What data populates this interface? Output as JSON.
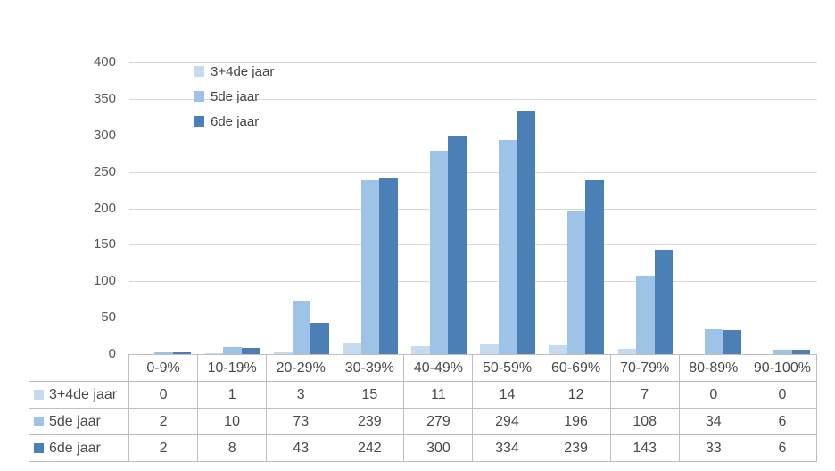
{
  "chart_data": {
    "type": "bar",
    "title": "",
    "xlabel": "",
    "ylabel": "",
    "categories": [
      "0-9%",
      "10-19%",
      "20-29%",
      "30-39%",
      "40-49%",
      "50-59%",
      "60-69%",
      "70-79%",
      "80-89%",
      "90-100%"
    ],
    "series": [
      {
        "name": "3+4de jaar",
        "color": "#C5DBEF",
        "values": [
          0,
          1,
          3,
          15,
          11,
          14,
          12,
          7,
          0,
          0
        ]
      },
      {
        "name": "5de jaar",
        "color": "#9DC3E6",
        "values": [
          2,
          10,
          73,
          239,
          279,
          294,
          196,
          108,
          34,
          6
        ]
      },
      {
        "name": "6de jaar",
        "color": "#4A80B6",
        "values": [
          2,
          8,
          43,
          242,
          300,
          334,
          239,
          143,
          33,
          6
        ]
      }
    ],
    "ylim": [
      0,
      400
    ],
    "y_ticks": [
      400,
      350,
      300,
      250,
      200,
      150,
      100,
      50,
      0
    ],
    "grid": true,
    "legend_position": "top-left-inside",
    "data_table_shown": true
  },
  "style": {
    "gridline_color": "#D9D9D9",
    "axis_line_color": "#BFBFBF",
    "table_border_color": "#BFBFBF",
    "axis_text_color": "#595959",
    "table_text_color": "#4A4A4A"
  }
}
